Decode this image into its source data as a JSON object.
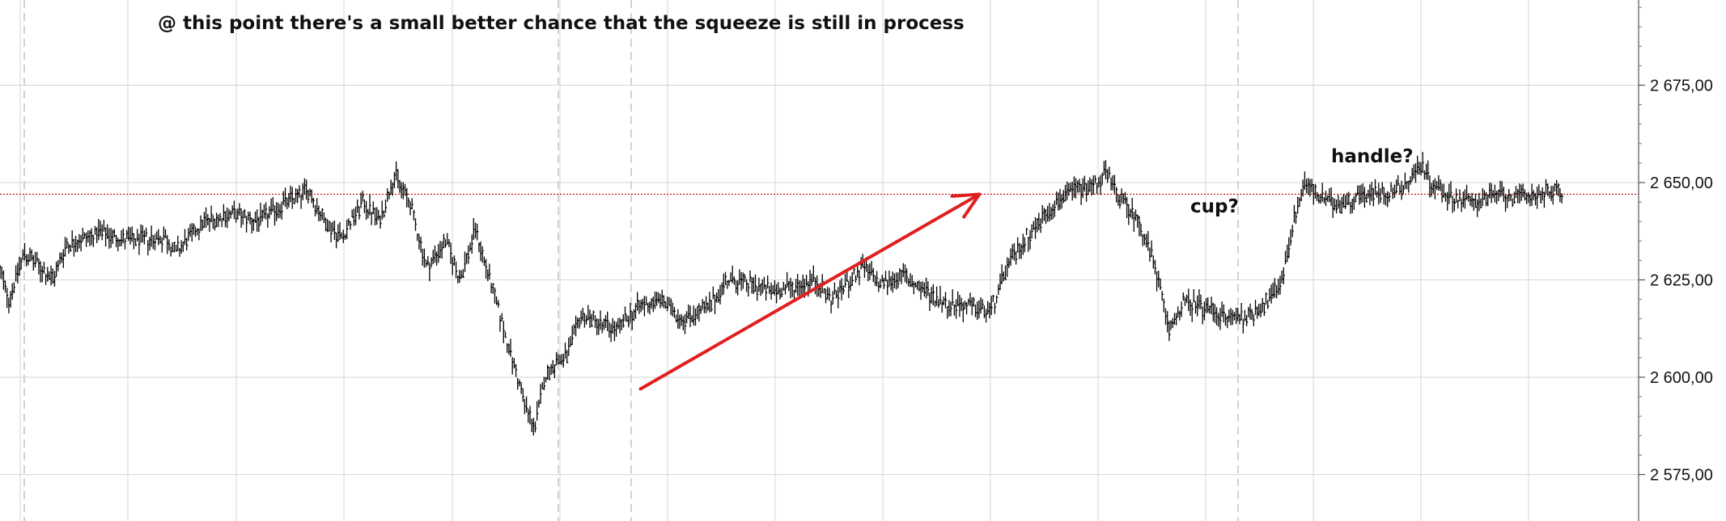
{
  "chart_data": {
    "type": "line",
    "style": "ohlc-bars",
    "y_axis_position": "right",
    "ylim": [
      2570,
      2700
    ],
    "yticks": [
      2575,
      2600,
      2625,
      2650,
      2675
    ],
    "y_tick_labels": [
      "2 575,00",
      "2 600,00",
      "2 625,00",
      "2 650,00",
      "2 675,00"
    ],
    "grid": true,
    "reference_line": {
      "value": 2647,
      "color": "#cc0000",
      "style": "dotted"
    },
    "series_color": "#000000",
    "path_keypoints": [
      [
        0,
        2627
      ],
      [
        8,
        2620
      ],
      [
        22,
        2632
      ],
      [
        48,
        2625
      ],
      [
        60,
        2634
      ],
      [
        90,
        2637
      ],
      [
        120,
        2635
      ],
      [
        150,
        2636
      ],
      [
        160,
        2632
      ],
      [
        185,
        2640
      ],
      [
        210,
        2642
      ],
      [
        235,
        2640
      ],
      [
        260,
        2645
      ],
      [
        280,
        2648
      ],
      [
        295,
        2640
      ],
      [
        310,
        2636
      ],
      [
        330,
        2645
      ],
      [
        345,
        2640
      ],
      [
        358,
        2652
      ],
      [
        372,
        2645
      ],
      [
        388,
        2628
      ],
      [
        405,
        2635
      ],
      [
        418,
        2625
      ],
      [
        432,
        2638
      ],
      [
        445,
        2625
      ],
      [
        460,
        2610
      ],
      [
        478,
        2592
      ],
      [
        486,
        2587
      ],
      [
        495,
        2600
      ],
      [
        505,
        2604
      ],
      [
        515,
        2605
      ],
      [
        528,
        2616
      ],
      [
        545,
        2614
      ],
      [
        560,
        2612
      ],
      [
        580,
        2618
      ],
      [
        600,
        2620
      ],
      [
        620,
        2615
      ],
      [
        645,
        2618
      ],
      [
        660,
        2625
      ],
      [
        680,
        2624
      ],
      [
        700,
        2622
      ],
      [
        720,
        2623
      ],
      [
        740,
        2625
      ],
      [
        755,
        2620
      ],
      [
        770,
        2624
      ],
      [
        785,
        2628
      ],
      [
        800,
        2624
      ],
      [
        820,
        2626
      ],
      [
        840,
        2622
      ],
      [
        860,
        2619
      ],
      [
        880,
        2618
      ],
      [
        900,
        2617
      ],
      [
        915,
        2628
      ],
      [
        930,
        2635
      ],
      [
        945,
        2640
      ],
      [
        960,
        2645
      ],
      [
        975,
        2648
      ],
      [
        990,
        2649
      ],
      [
        1005,
        2652
      ],
      [
        1020,
        2645
      ],
      [
        1035,
        2640
      ],
      [
        1050,
        2628
      ],
      [
        1062,
        2612
      ],
      [
        1075,
        2619
      ],
      [
        1095,
        2618
      ],
      [
        1115,
        2615
      ],
      [
        1135,
        2616
      ],
      [
        1155,
        2620
      ],
      [
        1165,
        2625
      ],
      [
        1175,
        2640
      ],
      [
        1185,
        2650
      ],
      [
        1200,
        2646
      ],
      [
        1215,
        2644
      ],
      [
        1235,
        2647
      ],
      [
        1260,
        2647
      ],
      [
        1280,
        2650
      ],
      [
        1292,
        2655
      ],
      [
        1300,
        2650
      ],
      [
        1320,
        2646
      ],
      [
        1340,
        2645
      ],
      [
        1360,
        2647
      ],
      [
        1380,
        2646
      ],
      [
        1400,
        2647
      ],
      [
        1420,
        2648
      ]
    ],
    "arrow": {
      "from": [
        582,
        2597
      ],
      "to": [
        890,
        2647
      ],
      "color": "#e02020"
    },
    "annotations": [
      {
        "text": "@ this point there's a small better chance that the squeeze is still in process"
      },
      {
        "text": "cup?"
      },
      {
        "text": "handle?"
      }
    ]
  }
}
